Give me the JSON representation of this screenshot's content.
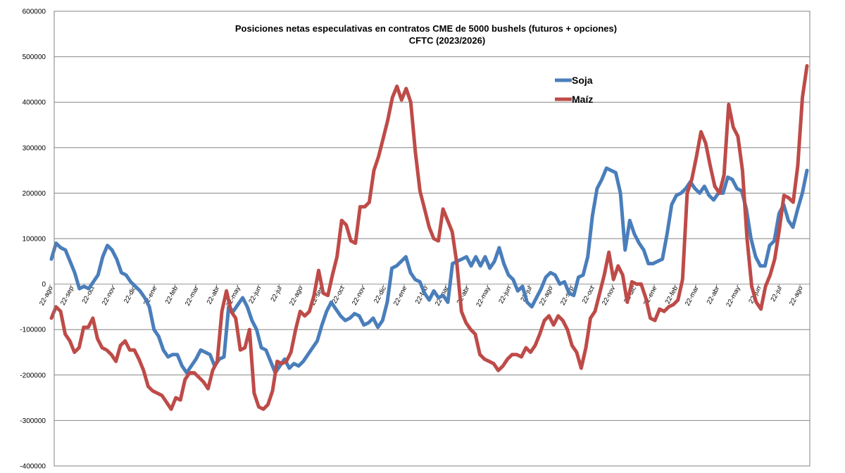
{
  "chart_data": {
    "type": "line",
    "title": "Posiciones netas especulativas en contratos CME de 5000 bushels (futuros + opciones)",
    "subtitle": "CFTC (2023/2026)",
    "ylim": [
      -400000,
      600000
    ],
    "y_ticks": [
      -400000,
      -300000,
      -200000,
      -100000,
      0,
      100000,
      200000,
      300000,
      400000,
      500000,
      600000
    ],
    "x_tick_labels": [
      "22-ago",
      "22-sep",
      "22-oct",
      "22-nov",
      "22-dic",
      "22-ene",
      "22-feb",
      "22-mar",
      "22-abr",
      "22-may",
      "22-jun",
      "22-jul",
      "22-ago",
      "22-sep",
      "22-oct",
      "22-nov",
      "22-dic",
      "22-ene",
      "22-feb",
      "22-mar",
      "22-abr",
      "22-may",
      "22-jun",
      "22-jul",
      "22-ago",
      "22-sep",
      "22-oct",
      "22-nov",
      "22-dic",
      "22-ene",
      "22-feb",
      "22-mar",
      "22-abr",
      "22-may",
      "22-jun",
      "22-jul",
      "22-ago"
    ],
    "grid": "horizontal",
    "legend_position": "top-right",
    "series": [
      {
        "name": "Soja",
        "color": "#4a7ebb",
        "values": [
          55000,
          90000,
          80000,
          75000,
          50000,
          25000,
          -10000,
          -5000,
          -10000,
          5000,
          20000,
          60000,
          85000,
          75000,
          55000,
          25000,
          20000,
          5000,
          -5000,
          -15000,
          -30000,
          -50000,
          -100000,
          -115000,
          -145000,
          -160000,
          -155000,
          -155000,
          -180000,
          -195000,
          -180000,
          -165000,
          -145000,
          -150000,
          -155000,
          -180000,
          -165000,
          -160000,
          -50000,
          -60000,
          -45000,
          -30000,
          -50000,
          -80000,
          -100000,
          -140000,
          -145000,
          -170000,
          -195000,
          -180000,
          -165000,
          -185000,
          -175000,
          -180000,
          -170000,
          -155000,
          -140000,
          -125000,
          -90000,
          -60000,
          -40000,
          -55000,
          -70000,
          -80000,
          -75000,
          -65000,
          -70000,
          -90000,
          -85000,
          -75000,
          -95000,
          -80000,
          -40000,
          35000,
          40000,
          50000,
          60000,
          25000,
          10000,
          5000,
          -20000,
          -35000,
          -15000,
          -30000,
          -25000,
          -40000,
          45000,
          50000,
          55000,
          60000,
          40000,
          60000,
          40000,
          60000,
          35000,
          50000,
          80000,
          45000,
          20000,
          10000,
          -15000,
          -5000,
          -40000,
          -50000,
          -30000,
          -10000,
          15000,
          25000,
          20000,
          0,
          5000,
          -20000,
          -25000,
          15000,
          20000,
          60000,
          150000,
          210000,
          230000,
          255000,
          250000,
          245000,
          200000,
          75000,
          140000,
          110000,
          90000,
          75000,
          45000,
          45000,
          50000,
          55000,
          110000,
          175000,
          195000,
          200000,
          210000,
          225000,
          210000,
          200000,
          215000,
          195000,
          185000,
          200000,
          200000,
          235000,
          230000,
          210000,
          205000,
          165000,
          100000,
          60000,
          40000,
          40000,
          85000,
          95000,
          155000,
          175000,
          140000,
          125000,
          165000,
          200000,
          250000
        ]
      },
      {
        "name": "Maíz",
        "color": "#be4b48",
        "values": [
          -75000,
          -50000,
          -60000,
          -110000,
          -125000,
          -150000,
          -140000,
          -95000,
          -95000,
          -75000,
          -120000,
          -140000,
          -145000,
          -155000,
          -170000,
          -135000,
          -125000,
          -145000,
          -145000,
          -165000,
          -190000,
          -225000,
          -235000,
          -240000,
          -245000,
          -260000,
          -275000,
          -250000,
          -255000,
          -210000,
          -195000,
          -195000,
          -205000,
          -215000,
          -230000,
          -190000,
          -170000,
          -60000,
          -15000,
          -60000,
          -75000,
          -145000,
          -140000,
          -100000,
          -240000,
          -270000,
          -275000,
          -265000,
          -235000,
          -170000,
          -175000,
          -170000,
          -150000,
          -100000,
          -60000,
          -70000,
          -60000,
          -25000,
          30000,
          -20000,
          -25000,
          20000,
          60000,
          140000,
          130000,
          95000,
          90000,
          170000,
          170000,
          180000,
          250000,
          280000,
          320000,
          360000,
          410000,
          435000,
          405000,
          430000,
          400000,
          290000,
          205000,
          165000,
          125000,
          100000,
          95000,
          165000,
          140000,
          115000,
          45000,
          -60000,
          -85000,
          -100000,
          -110000,
          -155000,
          -165000,
          -170000,
          -175000,
          -190000,
          -180000,
          -165000,
          -155000,
          -155000,
          -160000,
          -140000,
          -150000,
          -135000,
          -110000,
          -80000,
          -70000,
          -90000,
          -70000,
          -80000,
          -100000,
          -135000,
          -150000,
          -185000,
          -140000,
          -75000,
          -60000,
          -20000,
          20000,
          70000,
          10000,
          40000,
          20000,
          -40000,
          5000,
          0,
          0,
          -30000,
          -75000,
          -80000,
          -55000,
          -60000,
          -50000,
          -45000,
          -35000,
          10000,
          200000,
          230000,
          280000,
          335000,
          310000,
          260000,
          215000,
          200000,
          240000,
          395000,
          345000,
          325000,
          250000,
          100000,
          -5000,
          -40000,
          -55000,
          -5000,
          20000,
          55000,
          120000,
          195000,
          190000,
          180000,
          260000,
          410000,
          480000
        ]
      }
    ]
  }
}
